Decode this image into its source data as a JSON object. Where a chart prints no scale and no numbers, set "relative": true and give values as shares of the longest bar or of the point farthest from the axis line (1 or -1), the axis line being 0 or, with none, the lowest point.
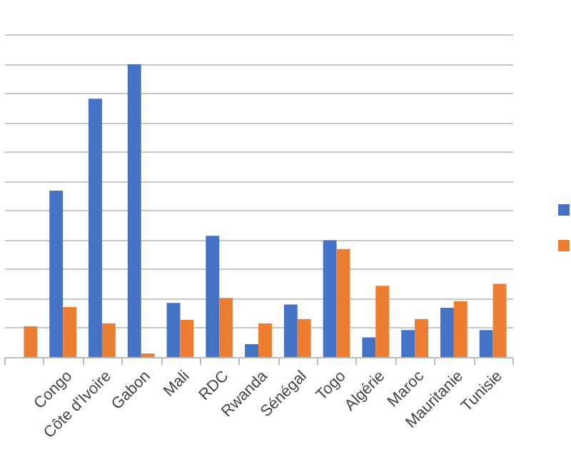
{
  "chart_data": {
    "type": "bar",
    "relative": true,
    "categories": [
      null,
      "Congo",
      "Côte d'Ivoire",
      "Gabon",
      "Mali",
      "RDC",
      "Rwanda",
      "Sénégal",
      "Togo",
      "Algérie",
      "Maroc",
      "Mauritanie",
      "Tunisie"
    ],
    "series": [
      {
        "color": "#4472c4",
        "values": [
          null,
          0.568,
          0.882,
          1,
          0.185,
          0.414,
          0.044,
          0.179,
          0.399,
          0.067,
          0.092,
          0.168,
          0.092
        ]
      },
      {
        "color": "#ed7d31",
        "values": [
          0.105,
          0.171,
          0.115,
          0.012,
          0.127,
          0.202,
          0.115,
          0.13,
          0.369,
          0.243,
          0.13,
          0.191,
          0.25
        ]
      }
    ],
    "grid": true
  }
}
